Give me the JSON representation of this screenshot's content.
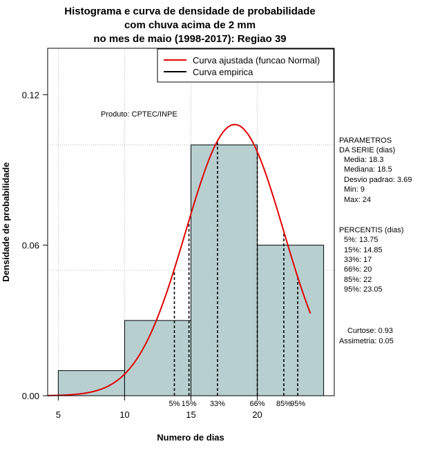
{
  "chart_data": {
    "type": "histogram",
    "title": [
      "Histograma e curva de densidade de probabilidade",
      "com chuva acima de 2 mm",
      "no mes de maio (1998-2017): Regiao 39"
    ],
    "xlabel": "Numero de dias",
    "ylabel": "Densidade de probabilidade",
    "xlim": [
      4.2,
      25.8
    ],
    "ylim": [
      0,
      0.1385
    ],
    "x_ticks": [
      5,
      10,
      15,
      20
    ],
    "y_ticks": [
      0.0,
      0.06,
      0.12
    ],
    "y_tick_labels": [
      "0.00",
      "0.06",
      "0.12"
    ],
    "bins": [
      {
        "from": 5,
        "to": 10,
        "density": 0.01
      },
      {
        "from": 10,
        "to": 15,
        "density": 0.03
      },
      {
        "from": 15,
        "to": 20,
        "density": 0.1
      },
      {
        "from": 20,
        "to": 25,
        "density": 0.06
      }
    ],
    "bar_color": "#b7cfcf",
    "grid_x": [
      5,
      10,
      15,
      20
    ],
    "grid_y": [
      0.0,
      0.05,
      0.1
    ],
    "normal_curve": {
      "mean": 18.3,
      "sd": 3.69,
      "x_from": 4.2,
      "x_to": 24.0,
      "color": "#e00000"
    },
    "percentiles": [
      {
        "label": "5%",
        "x": 13.75
      },
      {
        "label": "15%",
        "x": 14.85
      },
      {
        "label": "33%",
        "x": 17
      },
      {
        "label": "66%",
        "x": 20
      },
      {
        "label": "85%",
        "x": 22
      },
      {
        "label": "95%",
        "x": 23.05
      }
    ],
    "legend": {
      "position": "top-right",
      "items": [
        {
          "label": "Curva ajustada (funcao Normal)",
          "color": "#e00000"
        },
        {
          "label": "Curva empirica",
          "color": "#000000"
        }
      ]
    },
    "annotation": "Produto: CPTEC/INPE"
  },
  "side_panel": {
    "params_title_1": "PARAMETROS",
    "params_title_2": "DA SERIE (dias)",
    "media": "Media: 18.3",
    "mediana": "Mediana: 18.5",
    "desvio": "Desvio padrao: 3.69",
    "min": "Min: 9",
    "max": "Max: 24",
    "percentis_title": "PERCENTIS (dias)",
    "p5": "5%: 13.75",
    "p15": "15%: 14.85",
    "p33": "33%: 17",
    "p66": "66%: 20",
    "p85": "85%: 22",
    "p95": "95%: 23.05",
    "curtose": "Curtose: 0.93",
    "assimetria": "Assimetria: 0.05"
  }
}
